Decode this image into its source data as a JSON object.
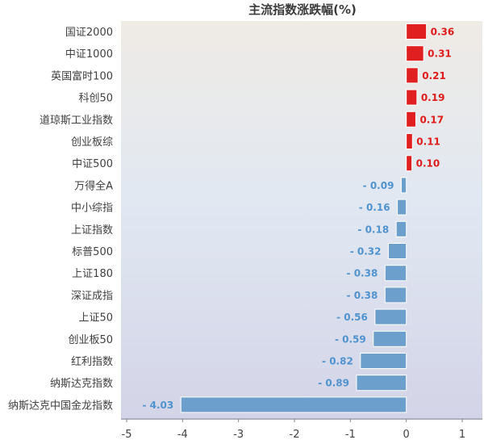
{
  "chart_data": {
    "type": "bar",
    "orientation": "horizontal",
    "title": "主流指数涨跌幅(%)",
    "categories": [
      "国证2000",
      "中证1000",
      "英国富时100",
      "科创50",
      "道琼斯工业指数",
      "创业板综",
      "中证500",
      "万得全A",
      "中小综指",
      "上证指数",
      "标普500",
      "上证180",
      "深证成指",
      "上证50",
      "创业板50",
      "红利指数",
      "纳斯达克指数",
      "纳斯达克中国金龙指数"
    ],
    "values": [
      0.36,
      0.31,
      0.21,
      0.19,
      0.17,
      0.11,
      0.1,
      -0.09,
      -0.16,
      -0.18,
      -0.32,
      -0.38,
      -0.38,
      -0.56,
      -0.59,
      -0.82,
      -0.89,
      -4.03
    ],
    "value_labels": [
      "0.36",
      "0.31",
      "0.21",
      "0.19",
      "0.17",
      "0.11",
      "0.10",
      "- 0.09",
      "- 0.16",
      "- 0.18",
      "- 0.32",
      "- 0.38",
      "- 0.38",
      "- 0.56",
      "- 0.59",
      "- 0.82",
      "- 0.89",
      "- 4.03"
    ],
    "xlim": [
      -5,
      1
    ],
    "xticks": [
      -5,
      -4,
      -3,
      -2,
      -1,
      0,
      1
    ],
    "xtick_labels": [
      "-5",
      "-4",
      "-3",
      "-2",
      "-1",
      "0",
      "1"
    ],
    "grid": false,
    "colors": {
      "positive": "#e02020",
      "negative": "#6c9fcc",
      "bg_top": "#efebe5",
      "bg_mid": "#e1e8f2",
      "bg_bottom": "#d3d4e7"
    }
  }
}
